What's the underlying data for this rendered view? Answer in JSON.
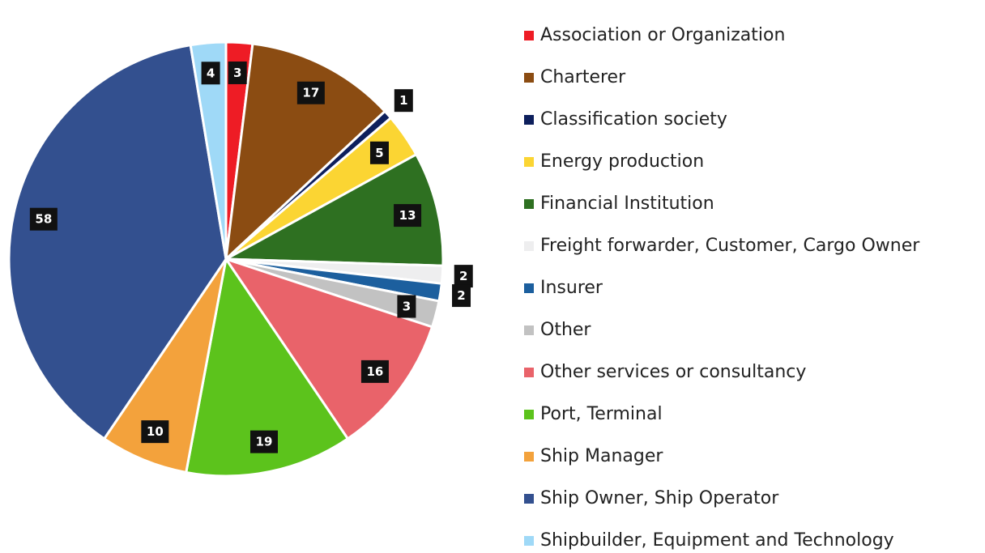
{
  "chart_data": {
    "type": "pie",
    "categories": [
      "Association or Organization",
      "Charterer",
      "Classification society",
      "Energy production",
      "Financial Institution",
      "Freight forwarder, Customer, Cargo Owner",
      "Insurer",
      "Other",
      "Other services or consultancy",
      "Port, Terminal",
      "Ship Manager",
      "Ship Owner, Ship Operator",
      "Shipbuilder, Equipment and Technology"
    ],
    "values": [
      3,
      17,
      1,
      5,
      13,
      2,
      2,
      3,
      16,
      19,
      10,
      58,
      4
    ],
    "colors": [
      "#ee1c25",
      "#8b4c12",
      "#0d1f5c",
      "#fbd533",
      "#2e7021",
      "#eeeeef",
      "#1c5f9e",
      "#c2c2c2",
      "#e9636a",
      "#5cc31c",
      "#f3a23c",
      "#33508f",
      "#9fd9f7"
    ],
    "legend": "right"
  }
}
